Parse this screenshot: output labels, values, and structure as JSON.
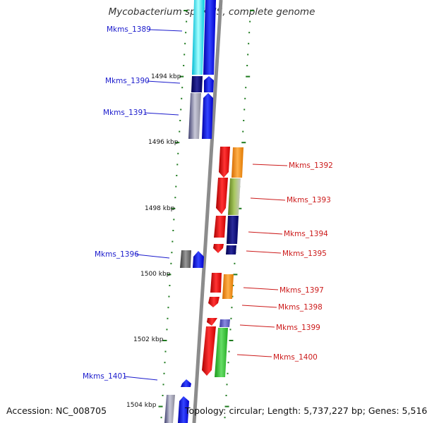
{
  "title": "Mycobacterium sp. KMS, complete genome",
  "accession": "Accession: NC_008705",
  "topology": "Topology: circular; Length: 5,737,227 bp; Genes: 5,516",
  "colors": {
    "backbone": "#8c8c8c",
    "tick": "#1e7a1e",
    "forward_label": "#1a1acc",
    "reverse_label": "#cc1a1a"
  },
  "scale_labels": [
    "1494 kbp",
    "1496 kbp",
    "1498 kbp",
    "1500 kbp",
    "1502 kbp",
    "1504 kbp"
  ],
  "forward_genes": [
    {
      "label": "Mkms_1389"
    },
    {
      "label": "Mkms_1390"
    },
    {
      "label": "Mkms_1391"
    },
    {
      "label": "Mkms_1396"
    },
    {
      "label": "Mkms_1401"
    }
  ],
  "reverse_genes": [
    {
      "label": "Mkms_1392"
    },
    {
      "label": "Mkms_1393"
    },
    {
      "label": "Mkms_1394"
    },
    {
      "label": "Mkms_1395"
    },
    {
      "label": "Mkms_1397"
    },
    {
      "label": "Mkms_1398"
    },
    {
      "label": "Mkms_1399"
    },
    {
      "label": "Mkms_1400"
    }
  ]
}
